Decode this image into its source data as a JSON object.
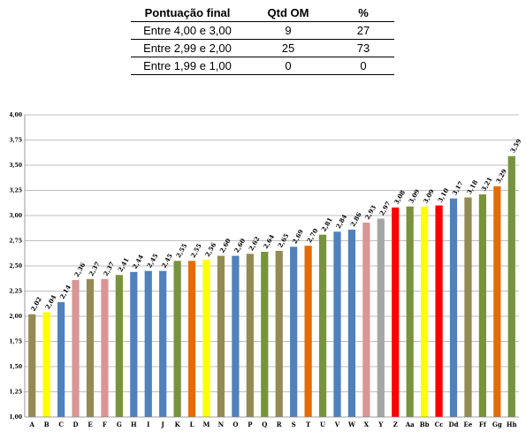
{
  "table": {
    "headers": [
      "Pontuação final",
      "Qtd OM",
      "%"
    ],
    "rows": [
      [
        "Entre 4,00 e 3,00",
        "9",
        "27"
      ],
      [
        "Entre 2,99 e 2,00",
        "25",
        "73"
      ],
      [
        "Entre 1,99 e 1,00",
        "0",
        "0"
      ]
    ]
  },
  "chart_data": {
    "type": "bar",
    "categories": [
      "A",
      "B",
      "C",
      "D",
      "E",
      "F",
      "G",
      "H",
      "I",
      "J",
      "K",
      "L",
      "M",
      "N",
      "O",
      "P",
      "Q",
      "R",
      "S",
      "T",
      "U",
      "V",
      "W",
      "X",
      "Y",
      "Z",
      "Aa",
      "Bb",
      "Cc",
      "Dd",
      "Ee",
      "Ff",
      "Gg",
      "Hh"
    ],
    "values": [
      2.02,
      2.04,
      2.14,
      2.36,
      2.37,
      2.37,
      2.41,
      2.44,
      2.45,
      2.45,
      2.55,
      2.55,
      2.56,
      2.6,
      2.6,
      2.62,
      2.64,
      2.65,
      2.69,
      2.7,
      2.81,
      2.84,
      2.86,
      2.93,
      2.97,
      3.08,
      3.09,
      3.09,
      3.1,
      3.17,
      3.18,
      3.21,
      3.29,
      3.59
    ],
    "labels": [
      "2,02",
      "2,04",
      "2,14",
      "2,36",
      "2,37",
      "2,37",
      "2,41",
      "2,44",
      "2,45",
      "2,45",
      "2,55",
      "2,55",
      "2,56",
      "2,60",
      "2,60",
      "2,62",
      "2,64",
      "2,65",
      "2,69",
      "2,70",
      "2,81",
      "2,84",
      "2,86",
      "2,93",
      "2,97",
      "3,08",
      "3,09",
      "3,09",
      "3,10",
      "3,17",
      "3,18",
      "3,21",
      "3,29",
      "3,59"
    ],
    "colors": [
      "#948a54",
      "#ffff00",
      "#4f81bd",
      "#d99694",
      "#948a54",
      "#d99694",
      "#77933c",
      "#4f81bd",
      "#4f81bd",
      "#4f81bd",
      "#77933c",
      "#e36c09",
      "#ffff00",
      "#948a54",
      "#4f81bd",
      "#948a54",
      "#77933c",
      "#948a54",
      "#4f81bd",
      "#e36c09",
      "#77933c",
      "#4f81bd",
      "#4f81bd",
      "#d99694",
      "#a6a6a6",
      "#ff0000",
      "#77933c",
      "#ffff00",
      "#ff0000",
      "#4f81bd",
      "#948a54",
      "#77933c",
      "#e36c09",
      "#77933c"
    ],
    "ylim": [
      1.0,
      4.0
    ],
    "yticks": [
      "1,00",
      "1,25",
      "1,50",
      "1,75",
      "2,00",
      "2,25",
      "2,50",
      "2,75",
      "3,00",
      "3,25",
      "3,50",
      "3,75",
      "4,00"
    ],
    "grid": true,
    "legend": "none",
    "title": "",
    "xlabel": "",
    "ylabel": ""
  }
}
